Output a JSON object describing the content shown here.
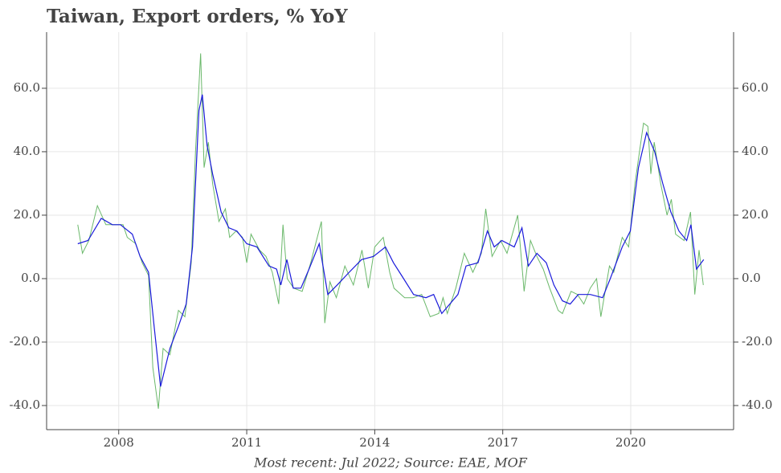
{
  "chart_data": {
    "type": "line",
    "title": "Taiwan, Export orders, % YoY",
    "caption": "Most recent: Jul 2022; Source: EAE, MOF",
    "xlim": [
      2006.31,
      2022.41
    ],
    "xticks": [
      2008,
      2011,
      2014,
      2017,
      2020
    ],
    "ylim": [
      -47.6,
      77.7
    ],
    "yticks": [
      {
        "value": -40,
        "label": "-40.0"
      },
      {
        "value": -20,
        "label": "-20.0"
      },
      {
        "value": 0,
        "label": "0.0"
      },
      {
        "value": 20,
        "label": "20.0"
      },
      {
        "value": 40,
        "label": "40.0"
      },
      {
        "value": 60,
        "label": "60.0"
      }
    ],
    "grid": true,
    "series": [
      {
        "color": "#6ab86a",
        "x": [
          2007.04,
          2007.15,
          2007.3,
          2007.5,
          2007.7,
          2007.9,
          2008.1,
          2008.2,
          2008.4,
          2008.55,
          2008.7,
          2008.8,
          2008.93,
          2009.04,
          2009.2,
          2009.4,
          2009.55,
          2009.7,
          2009.8,
          2009.92,
          2010.0,
          2010.1,
          2010.2,
          2010.35,
          2010.5,
          2010.6,
          2010.75,
          2010.9,
          2011.0,
          2011.1,
          2011.3,
          2011.45,
          2011.6,
          2011.75,
          2011.85,
          2011.95,
          2012.1,
          2012.3,
          2012.5,
          2012.75,
          2012.83,
          2012.95,
          2013.1,
          2013.3,
          2013.5,
          2013.7,
          2013.85,
          2014.0,
          2014.2,
          2014.35,
          2014.45,
          2014.7,
          2014.9,
          2015.1,
          2015.3,
          2015.5,
          2015.6,
          2015.7,
          2015.9,
          2016.1,
          2016.3,
          2016.5,
          2016.6,
          2016.75,
          2016.95,
          2017.1,
          2017.35,
          2017.5,
          2017.65,
          2017.8,
          2017.95,
          2018.1,
          2018.3,
          2018.4,
          2018.6,
          2018.75,
          2018.9,
          2019.05,
          2019.2,
          2019.3,
          2019.5,
          2019.6,
          2019.8,
          2019.95,
          2020.1,
          2020.3,
          2020.4,
          2020.47,
          2020.55,
          2020.7,
          2020.85,
          2020.95,
          2021.05,
          2021.25,
          2021.4,
          2021.5,
          2021.6,
          2021.7
        ],
        "values": [
          17,
          8,
          12,
          23,
          17,
          17,
          17,
          13,
          11,
          5,
          1,
          -28,
          -41,
          -22,
          -24,
          -10,
          -12,
          5,
          40,
          71,
          35,
          43,
          30,
          18,
          22,
          13,
          15,
          13,
          5,
          14,
          9,
          7,
          2,
          -8,
          17,
          0,
          -3,
          -4,
          5,
          18,
          -14,
          -1,
          -6,
          4,
          -2,
          9,
          -3,
          10,
          13,
          2,
          -3,
          -6,
          -6,
          -5,
          -12,
          -11,
          -6,
          -11,
          -3,
          8,
          2,
          8,
          22,
          7,
          12,
          8,
          20,
          -4,
          12,
          7,
          3,
          -3,
          -10,
          -11,
          -4,
          -5,
          -8,
          -3,
          0,
          -12,
          4,
          2,
          13,
          10,
          30,
          49,
          48,
          33,
          43,
          30,
          20,
          25,
          14,
          12,
          21,
          -5,
          9,
          -2
        ]
      },
      {
        "color": "#1a1adb",
        "x": [
          2007.04,
          2007.28,
          2007.59,
          2007.85,
          2008.04,
          2008.32,
          2008.5,
          2008.7,
          2008.83,
          2008.98,
          2009.2,
          2009.4,
          2009.58,
          2009.73,
          2009.88,
          2009.96,
          2010.07,
          2010.2,
          2010.4,
          2010.58,
          2010.77,
          2011.0,
          2011.24,
          2011.52,
          2011.7,
          2011.8,
          2011.94,
          2012.09,
          2012.27,
          2012.46,
          2012.7,
          2012.9,
          2013.12,
          2013.4,
          2013.69,
          2013.97,
          2014.25,
          2014.44,
          2014.63,
          2014.91,
          2015.2,
          2015.38,
          2015.57,
          2015.76,
          2015.95,
          2016.14,
          2016.42,
          2016.64,
          2016.8,
          2016.98,
          2017.27,
          2017.45,
          2017.6,
          2017.8,
          2018.02,
          2018.2,
          2018.4,
          2018.58,
          2018.77,
          2019.05,
          2019.34,
          2019.52,
          2019.8,
          2019.99,
          2020.18,
          2020.37,
          2020.56,
          2020.75,
          2020.94,
          2021.13,
          2021.31,
          2021.41,
          2021.54,
          2021.71
        ],
        "values": [
          11,
          12,
          19,
          17,
          17,
          14,
          7,
          2,
          -15,
          -34,
          -22,
          -15,
          -8,
          10,
          53,
          58,
          42,
          33,
          21,
          16,
          15,
          11,
          10,
          4,
          3,
          -2,
          6,
          -3,
          -3,
          3,
          11,
          -5,
          -2,
          2,
          6,
          7,
          10,
          5,
          1,
          -5,
          -6,
          -5,
          -11,
          -8,
          -5,
          4,
          5,
          15,
          10,
          12,
          10,
          16,
          4,
          8,
          5,
          -2,
          -7,
          -8,
          -5,
          -5,
          -6,
          0,
          10,
          15,
          35,
          46,
          40,
          30,
          21,
          15,
          12,
          17,
          3,
          6
        ]
      }
    ]
  }
}
